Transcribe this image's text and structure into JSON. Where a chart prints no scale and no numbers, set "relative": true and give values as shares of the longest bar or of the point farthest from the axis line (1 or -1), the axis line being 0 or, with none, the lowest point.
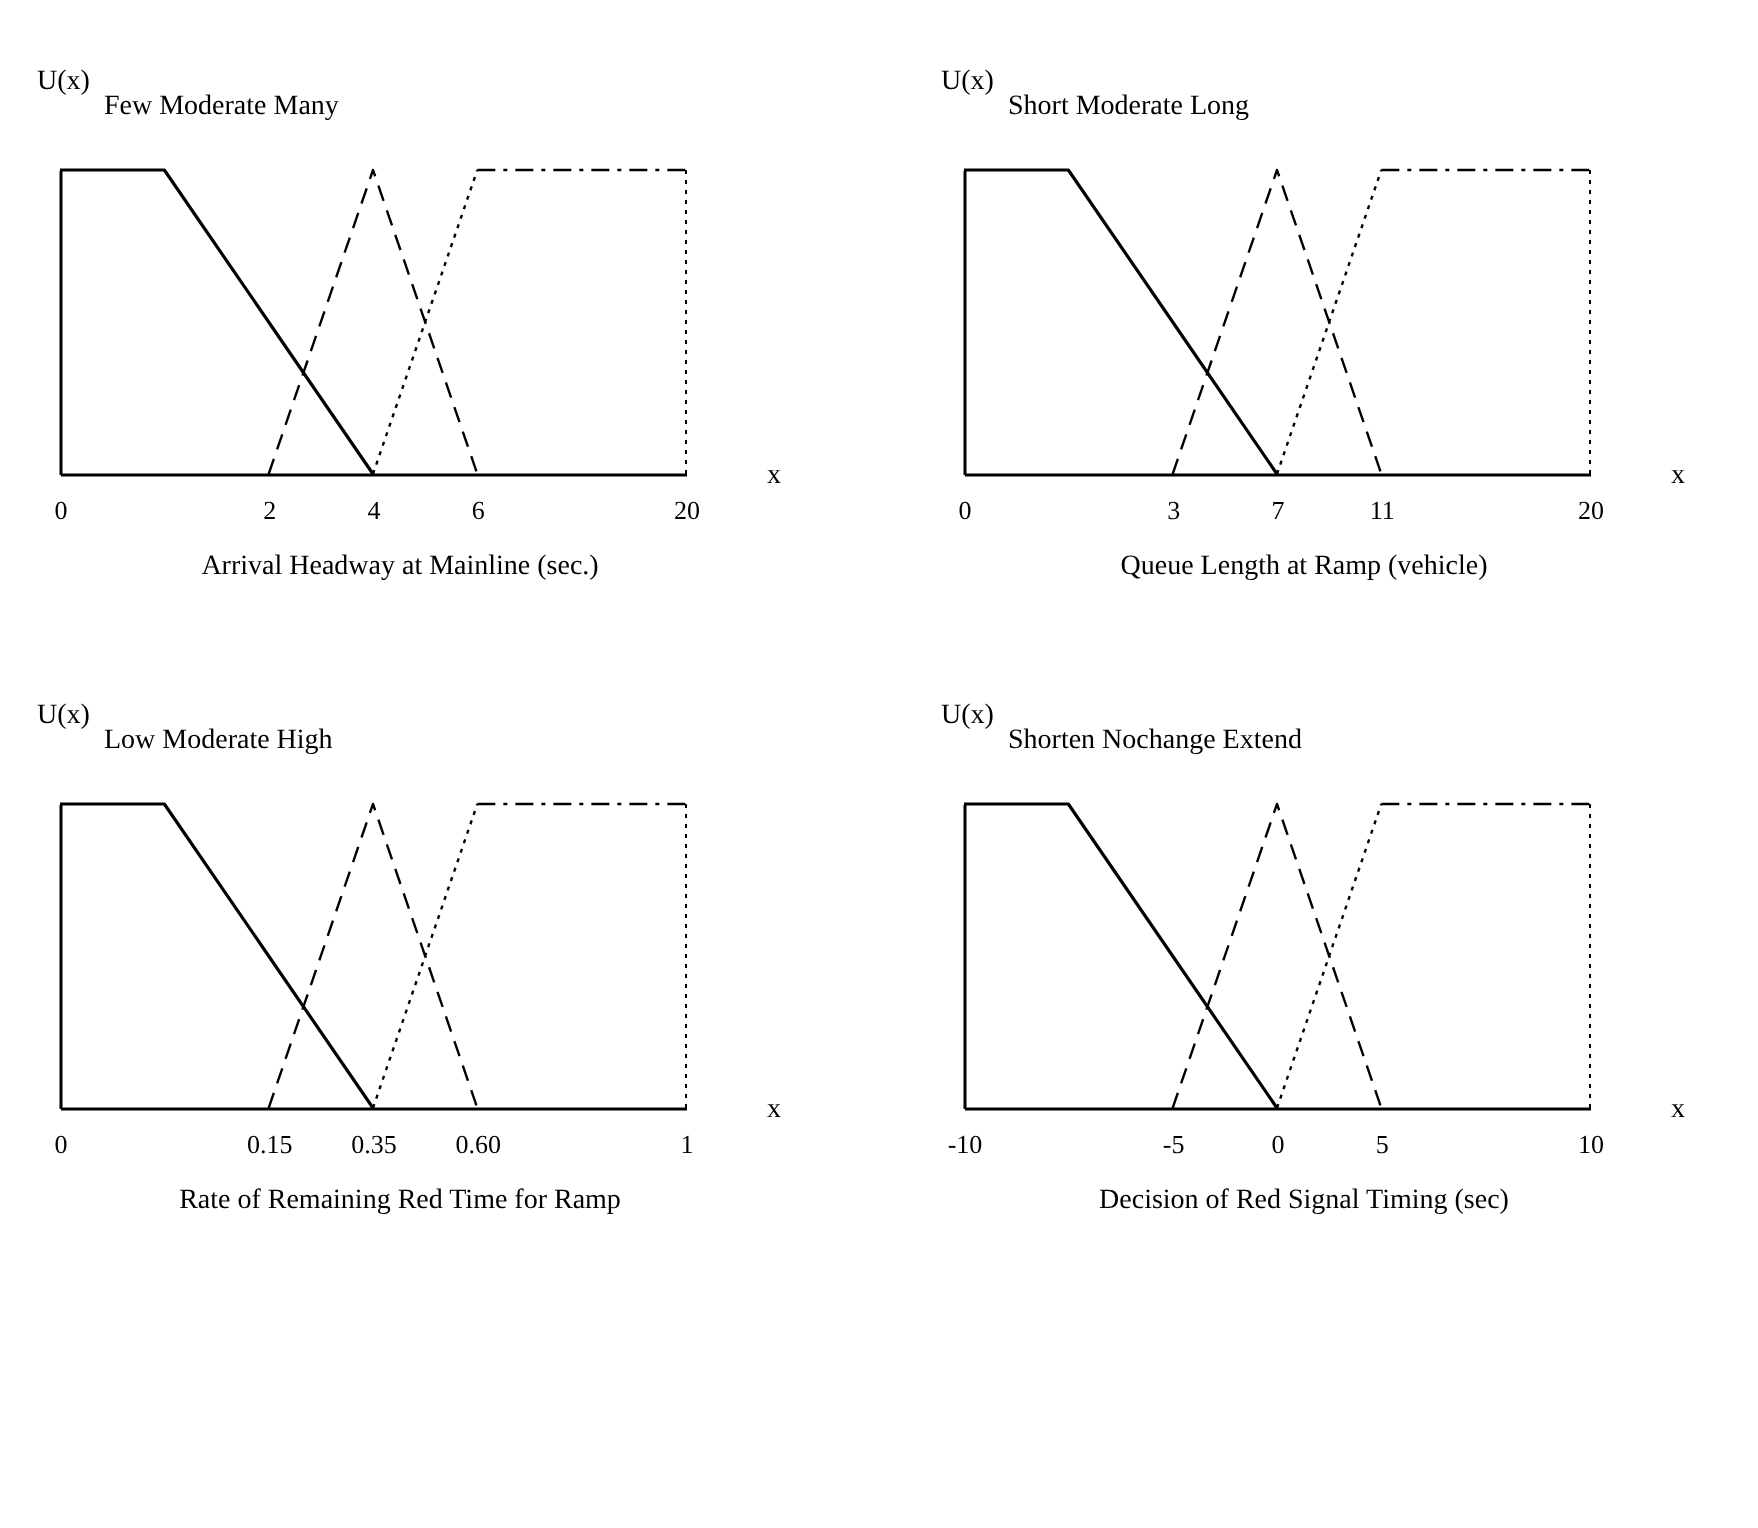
{
  "chart_data": [
    {
      "type": "line",
      "title": "Arrival Headway at Mainline (sec.)",
      "xlabel": "x",
      "ylabel": "U(x)",
      "relative": true,
      "tick_labels": "x",
      "annotations": [
        "Few Moderate Many"
      ],
      "categories": [
        "0",
        null,
        "2",
        "4",
        "6",
        null,
        "20"
      ],
      "series": [
        {
          "color": "#000000",
          "line_style": "solid",
          "values": [
            1,
            1,
            0.5,
            0,
            null,
            null,
            null
          ]
        },
        {
          "color": "#000000",
          "line_style": "dashed",
          "values": [
            null,
            null,
            0,
            1,
            0,
            null,
            null
          ]
        },
        {
          "color": "#000000",
          "line_style": "dotted",
          "values": [
            null,
            null,
            null,
            0,
            1,
            null,
            null
          ]
        },
        {
          "color": "#000000",
          "line_style": "dashdot",
          "values": [
            null,
            null,
            null,
            null,
            1,
            1,
            1
          ]
        }
      ],
      "ref_lines": [
        {
          "axis": "x",
          "value": "20",
          "line_style": "dotted",
          "color": "#000000"
        }
      ]
    },
    {
      "type": "line",
      "title": "Queue Length at Ramp (vehicle)",
      "xlabel": "x",
      "ylabel": "U(x)",
      "relative": true,
      "tick_labels": "x",
      "annotations": [
        "Short Moderate Long"
      ],
      "categories": [
        "0",
        null,
        "3",
        "7",
        "11",
        null,
        "20"
      ],
      "series": [
        {
          "color": "#000000",
          "line_style": "solid",
          "values": [
            1,
            1,
            0.5,
            0,
            null,
            null,
            null
          ]
        },
        {
          "color": "#000000",
          "line_style": "dashed",
          "values": [
            null,
            null,
            0,
            1,
            0,
            null,
            null
          ]
        },
        {
          "color": "#000000",
          "line_style": "dotted",
          "values": [
            null,
            null,
            null,
            0,
            1,
            null,
            null
          ]
        },
        {
          "color": "#000000",
          "line_style": "dashdot",
          "values": [
            null,
            null,
            null,
            null,
            1,
            1,
            1
          ]
        }
      ],
      "ref_lines": [
        {
          "axis": "x",
          "value": "20",
          "line_style": "dotted",
          "color": "#000000"
        }
      ]
    },
    {
      "type": "line",
      "title": "Rate of Remaining Red Time for Ramp",
      "xlabel": "x",
      "ylabel": "U(x)",
      "relative": true,
      "tick_labels": "x",
      "annotations": [
        "Low Moderate High"
      ],
      "categories": [
        "0",
        null,
        "0.15",
        "0.35",
        "0.60",
        null,
        "1"
      ],
      "series": [
        {
          "color": "#000000",
          "line_style": "solid",
          "values": [
            1,
            1,
            0.5,
            0,
            null,
            null,
            null
          ]
        },
        {
          "color": "#000000",
          "line_style": "dashed",
          "values": [
            null,
            null,
            0,
            1,
            0,
            null,
            null
          ]
        },
        {
          "color": "#000000",
          "line_style": "dotted",
          "values": [
            null,
            null,
            null,
            0,
            1,
            null,
            null
          ]
        },
        {
          "color": "#000000",
          "line_style": "dashdot",
          "values": [
            null,
            null,
            null,
            null,
            1,
            1,
            1
          ]
        }
      ],
      "ref_lines": [
        {
          "axis": "x",
          "value": "1",
          "line_style": "dotted",
          "color": "#000000"
        }
      ]
    },
    {
      "type": "line",
      "title": "Decision of Red Signal Timing (sec)",
      "xlabel": "x",
      "ylabel": "U(x)",
      "relative": true,
      "tick_labels": "x",
      "annotations": [
        "Shorten Nochange Extend"
      ],
      "categories": [
        "-10",
        null,
        "-5",
        "0",
        "5",
        null,
        "10"
      ],
      "series": [
        {
          "color": "#000000",
          "line_style": "solid",
          "values": [
            1,
            1,
            0.5,
            0,
            null,
            null,
            null
          ]
        },
        {
          "color": "#000000",
          "line_style": "dashed",
          "values": [
            null,
            null,
            0,
            1,
            0,
            null,
            null
          ]
        },
        {
          "color": "#000000",
          "line_style": "dotted",
          "values": [
            null,
            null,
            null,
            0,
            1,
            null,
            null
          ]
        },
        {
          "color": "#000000",
          "line_style": "dashdot",
          "values": [
            null,
            null,
            null,
            null,
            1,
            1,
            1
          ]
        }
      ],
      "ref_lines": [
        {
          "axis": "x",
          "value": "10",
          "line_style": "dotted",
          "color": "#000000"
        }
      ]
    }
  ]
}
